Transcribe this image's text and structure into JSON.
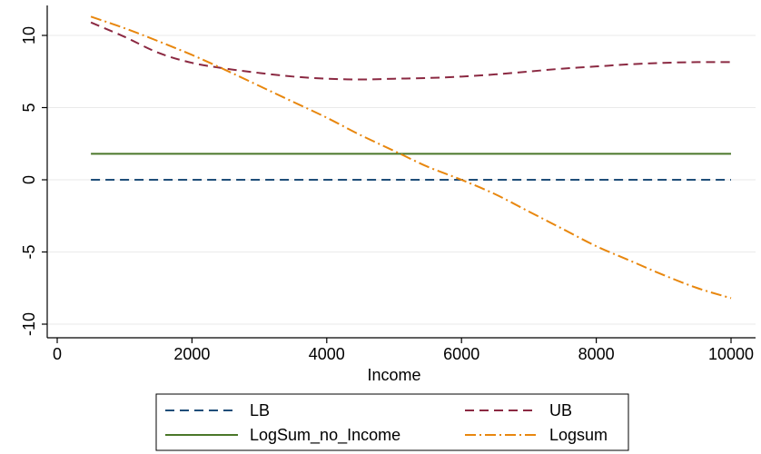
{
  "chart_data": {
    "type": "line",
    "xlabel": "Income",
    "ylabel": "",
    "xlim": [
      0,
      10000
    ],
    "ylim": [
      -10.5,
      12
    ],
    "xticks": [
      0,
      2000,
      4000,
      6000,
      8000,
      10000
    ],
    "xtick_labels": [
      "0",
      "2000",
      "4000",
      "6000",
      "8000",
      "10000"
    ],
    "yticks": [
      -10,
      -5,
      0,
      5,
      10
    ],
    "ytick_labels": [
      "-10",
      "-5",
      "0",
      "5",
      "10"
    ],
    "grid": "horizontal",
    "legend_position": "bottom",
    "series": [
      {
        "name": "LB",
        "color": "#1f4e79",
        "dash": "dashed",
        "x": [
          500,
          10000
        ],
        "y": [
          0,
          0
        ]
      },
      {
        "name": "UB",
        "color": "#8b2942",
        "dash": "dashed",
        "x": [
          500,
          1000,
          1500,
          2000,
          2500,
          3000,
          3500,
          4000,
          4500,
          5000,
          5500,
          6000,
          6500,
          7000,
          7500,
          8000,
          8500,
          9000,
          9500,
          10000
        ],
        "y": [
          10.9,
          9.9,
          8.8,
          8.1,
          7.7,
          7.4,
          7.15,
          7.0,
          6.95,
          7.0,
          7.05,
          7.15,
          7.3,
          7.5,
          7.7,
          7.85,
          8.0,
          8.1,
          8.15,
          8.15
        ]
      },
      {
        "name": "LogSum_no_Income",
        "color": "#4a7729",
        "dash": "solid",
        "x": [
          500,
          10000
        ],
        "y": [
          1.8,
          1.8
        ]
      },
      {
        "name": "Logsum",
        "color": "#e8870e",
        "dash": "dashdot",
        "x": [
          500,
          1000,
          1500,
          2000,
          2500,
          3000,
          3500,
          4000,
          4500,
          5000,
          5500,
          6000,
          6500,
          7000,
          7500,
          8000,
          8500,
          9000,
          9500,
          10000
        ],
        "y": [
          11.3,
          10.5,
          9.6,
          8.65,
          7.6,
          6.5,
          5.4,
          4.3,
          3.1,
          2.0,
          0.9,
          0.0,
          -1.0,
          -2.2,
          -3.4,
          -4.6,
          -5.6,
          -6.6,
          -7.5,
          -8.2
        ]
      }
    ]
  }
}
